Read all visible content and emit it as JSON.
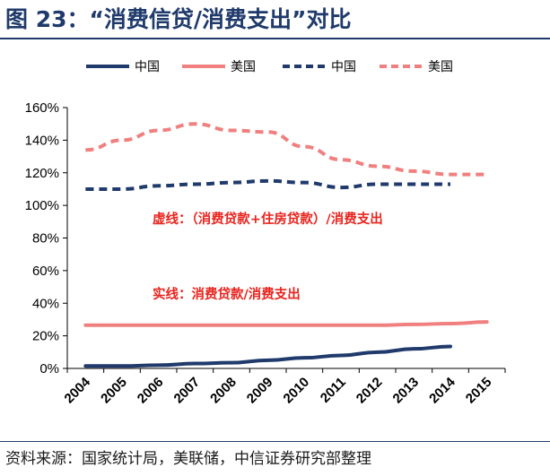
{
  "title": "图 23：“消费信贷/消费支出”对比",
  "source": "资料来源：国家统计局，美联储，中信证券研究部整理",
  "colors": {
    "china": "#1f3a6b",
    "us": "#f08080",
    "annotation": "#e8251f",
    "title": "#1f3a6b"
  },
  "chart_data": {
    "type": "line",
    "categories": [
      "2004",
      "2005",
      "2006",
      "2007",
      "2008",
      "2009",
      "2010",
      "2011",
      "2012",
      "2013",
      "2014",
      "2015"
    ],
    "ylim": [
      0,
      160
    ],
    "yticks": [
      "0%",
      "20%",
      "40%",
      "60%",
      "80%",
      "100%",
      "120%",
      "140%",
      "160%"
    ],
    "grid": false,
    "legend_position": "top",
    "series": [
      {
        "name": "中国",
        "style": "solid",
        "color": "#1f3a6b",
        "values": [
          1.5,
          1.5,
          2,
          3,
          3.5,
          5,
          6.5,
          8,
          10,
          12,
          13.5,
          null
        ]
      },
      {
        "name": "美国",
        "style": "solid",
        "color": "#f08080",
        "values": [
          26.5,
          26.5,
          26.5,
          26.5,
          26.5,
          26.5,
          26.5,
          26.5,
          26.5,
          27,
          27.5,
          28.5
        ]
      },
      {
        "name": "中国",
        "style": "dashed",
        "color": "#1f3a6b",
        "values": [
          110,
          110,
          112,
          113,
          114,
          115,
          114,
          111,
          113,
          113,
          113,
          null
        ]
      },
      {
        "name": "美国",
        "style": "dashed",
        "color": "#f08080",
        "values": [
          134,
          140,
          146,
          150,
          146,
          145,
          136,
          128,
          124,
          121,
          119,
          119
        ]
      }
    ],
    "annotations": [
      {
        "text": "虚线：（消费贷款+住房贷款）/消费支出"
      },
      {
        "text": "实线：消费贷款/消费支出"
      }
    ]
  }
}
